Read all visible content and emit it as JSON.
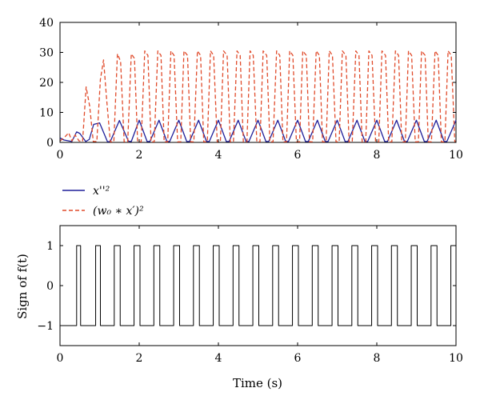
{
  "chart_data": [
    {
      "type": "line",
      "xlim": [
        0,
        10
      ],
      "ylim": [
        0,
        40
      ],
      "xticks": [
        0,
        2,
        4,
        6,
        8,
        10
      ],
      "yticks": [
        0,
        10,
        20,
        30,
        40
      ],
      "xtick_labels": [
        "0",
        "2",
        "4",
        "6",
        "8",
        "10"
      ],
      "ytick_labels": [
        "0",
        "10",
        "20",
        "30",
        "40"
      ],
      "xlabel": "",
      "ylabel": "",
      "grid": false,
      "legend_position": "below",
      "series": [
        {
          "name": "x''²",
          "color": "#1f1f9a",
          "style": "solid",
          "x": [
            0,
            0.1,
            0.3,
            0.42,
            0.5,
            0.65,
            0.74,
            0.85,
            1.0,
            1.2,
            1.27,
            1.5,
            1.73,
            1.8,
            2.0,
            2.2,
            2.27,
            2.5,
            2.7,
            2.77,
            3.0,
            3.2,
            3.27,
            3.5,
            3.7,
            3.77,
            4.0,
            4.2,
            4.27,
            4.5,
            4.7,
            4.77,
            5.0,
            5.2,
            5.27,
            5.5,
            5.7,
            5.77,
            6.0,
            6.2,
            6.27,
            6.5,
            6.7,
            6.77,
            7.0,
            7.2,
            7.27,
            7.5,
            7.7,
            7.77,
            8.0,
            8.2,
            8.27,
            8.5,
            8.7,
            8.77,
            9.0,
            9.2,
            9.27,
            9.5,
            9.7,
            9.77,
            10.0
          ],
          "y": [
            1.5,
            0.8,
            0.3,
            3.5,
            3.0,
            0.3,
            1.0,
            6.0,
            6.5,
            0.2,
            0.3,
            7.3,
            0.4,
            0.3,
            7.4,
            0.3,
            0.3,
            7.4,
            0.3,
            0.3,
            7.4,
            0.3,
            0.3,
            7.4,
            0.3,
            0.3,
            7.4,
            0.3,
            0.3,
            7.4,
            0.3,
            0.3,
            7.4,
            0.3,
            0.3,
            7.4,
            0.3,
            0.3,
            7.4,
            0.3,
            0.3,
            7.4,
            0.3,
            0.3,
            7.4,
            0.3,
            0.3,
            7.4,
            0.3,
            0.3,
            7.4,
            0.3,
            0.3,
            7.4,
            0.3,
            0.3,
            7.4,
            0.3,
            0.3,
            7.4,
            0.3,
            0.3,
            7.4
          ]
        },
        {
          "name": "(w₀ ∗ x′)²",
          "color": "#e04a2a",
          "style": "dashed",
          "x": [
            0,
            0.1,
            0.22,
            0.3,
            0.38,
            0.48,
            0.57,
            0.66,
            0.75,
            0.84,
            0.93,
            1.02,
            1.1,
            1.18,
            1.27,
            1.36,
            1.45,
            1.53,
            1.62,
            1.71,
            1.8,
            1.88,
            1.96,
            2.05,
            2.14,
            2.22,
            2.3,
            2.38,
            2.47,
            2.55,
            2.63,
            2.72,
            2.8,
            2.88,
            2.97,
            3.05,
            3.13,
            3.22,
            3.3,
            3.38,
            3.47,
            3.55,
            3.63,
            3.72,
            3.8,
            3.88,
            3.97,
            4.05,
            4.13,
            4.22,
            4.3,
            4.38,
            4.47,
            4.55,
            4.63,
            4.72,
            4.8,
            4.88,
            4.97,
            5.05,
            5.13,
            5.22,
            5.3,
            5.38,
            5.47,
            5.55,
            5.63,
            5.72,
            5.8,
            5.88,
            5.97,
            6.05,
            6.13,
            6.22,
            6.3,
            6.38,
            6.47,
            6.55,
            6.63,
            6.72,
            6.8,
            6.88,
            6.97,
            7.05,
            7.13,
            7.22,
            7.3,
            7.38,
            7.47,
            7.55,
            7.63,
            7.72,
            7.8,
            7.88,
            7.97,
            8.05,
            8.13,
            8.22,
            8.3,
            8.38,
            8.47,
            8.55,
            8.63,
            8.72,
            8.8,
            8.88,
            8.97,
            9.05,
            9.13,
            9.22,
            9.3,
            9.38,
            9.47,
            9.55,
            9.63,
            9.72,
            9.8,
            9.88,
            9.97,
            10.0
          ],
          "y": [
            0.5,
            1.5,
            3.2,
            0.5,
            2.5,
            0.5,
            0.3,
            18.5,
            12.0,
            0.3,
            0.3,
            21.0,
            27.5,
            14.0,
            0.2,
            0.2,
            29.5,
            27.0,
            0.2,
            0.2,
            29.5,
            28.0,
            0.2,
            0.2,
            30.5,
            29.0,
            0.2,
            0.2,
            30.5,
            29.0,
            0.2,
            0.2,
            30.5,
            29.0,
            0.2,
            0.2,
            30.5,
            29.0,
            0.2,
            0.2,
            30.5,
            29.0,
            0.2,
            0.2,
            30.5,
            29.0,
            0.2,
            0.2,
            30.5,
            29.0,
            0.2,
            0.2,
            30.5,
            29.0,
            0.2,
            0.2,
            30.5,
            29.0,
            0.2,
            0.2,
            30.5,
            29.0,
            0.2,
            0.2,
            30.5,
            29.0,
            0.2,
            0.2,
            30.5,
            29.0,
            0.2,
            0.2,
            30.5,
            29.0,
            0.2,
            0.2,
            30.5,
            29.0,
            0.2,
            0.2,
            30.5,
            29.0,
            0.2,
            0.2,
            30.5,
            29.0,
            0.2,
            0.2,
            30.5,
            29.0,
            0.2,
            0.2,
            30.5,
            29.0,
            0.2,
            0.2,
            30.5,
            29.0,
            0.2,
            0.2,
            30.5,
            29.0,
            0.2,
            0.2,
            30.5,
            29.0,
            0.2,
            0.2,
            30.5,
            29.0,
            0.2,
            0.2,
            30.5,
            29.0,
            0.2,
            0.2,
            30.5,
            29.0,
            0.2,
            0.2
          ]
        }
      ]
    },
    {
      "type": "line",
      "xlim": [
        0,
        10
      ],
      "ylim": [
        -1.5,
        1.5
      ],
      "xticks": [
        0,
        2,
        4,
        6,
        8,
        10
      ],
      "yticks": [
        -1,
        0,
        1
      ],
      "xtick_labels": [
        "0",
        "2",
        "4",
        "6",
        "8",
        "10"
      ],
      "ytick_labels": [
        "−1",
        "0",
        "1"
      ],
      "xlabel": "Time (s)",
      "ylabel": "Sign of f(t)",
      "grid": false,
      "series": [
        {
          "color": "#000000",
          "style": "solid",
          "step": true,
          "high_intervals": [
            [
              0.0,
              0.0
            ],
            [
              0.42,
              0.52
            ],
            [
              0.9,
              1.02
            ],
            [
              1.37,
              1.52
            ],
            [
              1.87,
              2.02
            ],
            [
              2.37,
              2.52
            ],
            [
              2.87,
              3.02
            ],
            [
              3.37,
              3.52
            ],
            [
              3.87,
              4.02
            ],
            [
              4.37,
              4.52
            ],
            [
              4.87,
              5.02
            ],
            [
              5.37,
              5.52
            ],
            [
              5.87,
              6.02
            ],
            [
              6.37,
              6.52
            ],
            [
              6.87,
              7.02
            ],
            [
              7.37,
              7.52
            ],
            [
              7.87,
              8.02
            ],
            [
              8.37,
              8.52
            ],
            [
              8.87,
              9.02
            ],
            [
              9.37,
              9.52
            ],
            [
              9.87,
              10.0
            ]
          ],
          "high_value": 1,
          "low_value": -1,
          "start_value": 1
        }
      ]
    }
  ]
}
